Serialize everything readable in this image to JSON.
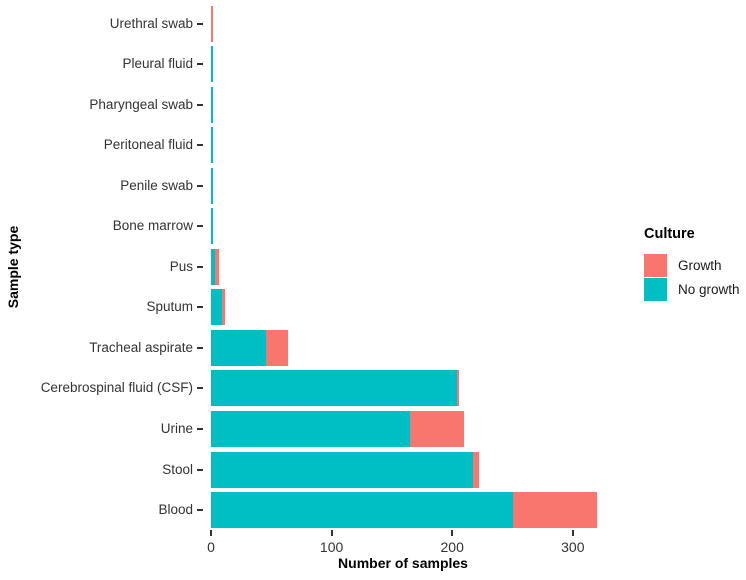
{
  "chart_data": {
    "type": "bar",
    "orientation": "horizontal",
    "stacked": true,
    "title": "",
    "xlabel": "Number of samples",
    "ylabel": "Sample type",
    "categories": [
      "Urethral swab",
      "Pleural fluid",
      "Pharyngeal swab",
      "Peritoneal fluid",
      "Penile swab",
      "Bone marrow",
      "Pus",
      "Sputum",
      "Tracheal aspirate",
      "Cerebrospinal fluid (CSF)",
      "Urine",
      "Stool",
      "Blood"
    ],
    "series": [
      {
        "name": "Growth",
        "color": "#F8766D",
        "values": [
          2,
          0,
          0,
          0,
          0,
          0,
          4,
          3,
          18,
          2,
          45,
          5,
          70
        ]
      },
      {
        "name": "No growth",
        "color": "#00BFC4",
        "values": [
          0,
          2,
          2,
          2,
          2,
          2,
          3,
          9,
          46,
          204,
          165,
          217,
          250
        ]
      }
    ],
    "stack_order": [
      "No growth",
      "Growth"
    ],
    "x_ticks": [
      0,
      100,
      200,
      300
    ],
    "xlim": [
      0,
      435
    ],
    "grid": "off",
    "legend": {
      "title": "Culture",
      "position": "right",
      "entries": [
        {
          "label": "Growth",
          "color": "#F8766D"
        },
        {
          "label": "No growth",
          "color": "#00BFC4"
        }
      ]
    },
    "colors": {
      "background": "#ffffff",
      "axis_text": "#333333",
      "axis_title": "#000000"
    }
  }
}
